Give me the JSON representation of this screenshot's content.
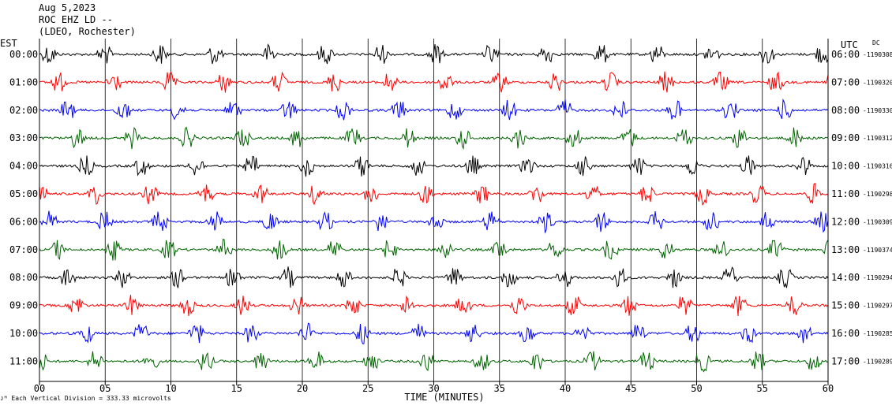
{
  "header": {
    "date": "Aug 5,2023",
    "station": "ROC EHZ LD --",
    "network": "(LDEO, Rochester)"
  },
  "left_zone": "EST",
  "right_zone": "UTC",
  "dc_label": "DC",
  "footer_note": "Each Vertical Division =  333.33 microvolts",
  "chart_data": {
    "type": "line",
    "xlabel": "TIME (MINUTES)",
    "xlim": [
      0,
      60
    ],
    "xticks": [
      "00",
      "05",
      "10",
      "15",
      "20",
      "25",
      "30",
      "35",
      "40",
      "45",
      "50",
      "55",
      "60"
    ],
    "trace_colors": [
      "#000000",
      "#ff0000",
      "#0000ff",
      "#006400"
    ],
    "rows": [
      {
        "est": "00:00",
        "utc": "06:00",
        "dc": "-1190308"
      },
      {
        "est": "01:00",
        "utc": "07:00",
        "dc": "-1190320"
      },
      {
        "est": "02:00",
        "utc": "08:00",
        "dc": "-1190330"
      },
      {
        "est": "03:00",
        "utc": "09:00",
        "dc": "-1190312"
      },
      {
        "est": "04:00",
        "utc": "10:00",
        "dc": "-1190316"
      },
      {
        "est": "05:00",
        "utc": "11:00",
        "dc": "-1190298"
      },
      {
        "est": "06:00",
        "utc": "12:00",
        "dc": "-1190309"
      },
      {
        "est": "07:00",
        "utc": "13:00",
        "dc": "-1190374"
      },
      {
        "est": "08:00",
        "utc": "14:00",
        "dc": "-1190294"
      },
      {
        "est": "09:00",
        "utc": "15:00",
        "dc": "-1190297"
      },
      {
        "est": "10:00",
        "utc": "16:00",
        "dc": "-1190285"
      },
      {
        "est": "11:00",
        "utc": "17:00",
        "dc": "-1190289"
      }
    ]
  }
}
